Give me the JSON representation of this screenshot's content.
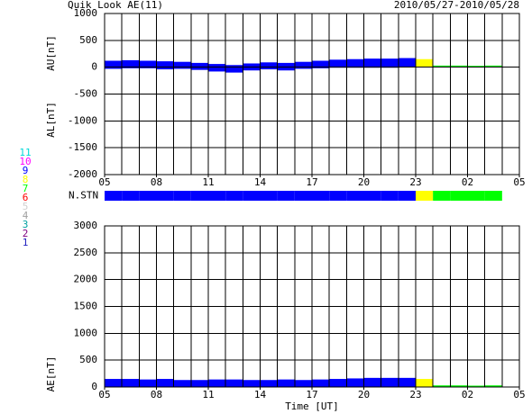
{
  "title": "Quik Look AE(11)",
  "date_range": "2010/05/27-2010/05/28",
  "station_legend": {
    "labels": [
      11,
      10,
      9,
      8,
      7,
      6,
      5,
      4,
      3,
      2,
      1
    ],
    "colors": [
      "#00d8d8",
      "#ff00ff",
      "#0000ff",
      "#ffff00",
      "#00ff00",
      "#ff0000",
      "#d0d0d0",
      "#a0a0a0",
      "#00a0a0",
      "#800080",
      "#2020c0"
    ]
  },
  "chart_data": [
    {
      "type": "range",
      "ylabels": [
        "AU[nT]",
        "AL[nT]"
      ],
      "x": [
        5,
        6,
        7,
        8,
        9,
        10,
        11,
        12,
        13,
        14,
        15,
        16,
        17,
        18,
        19,
        20,
        21,
        22,
        23,
        24,
        25,
        26,
        27
      ],
      "series": [
        {
          "values": [
            120,
            130,
            120,
            110,
            100,
            80,
            60,
            40,
            70,
            90,
            80,
            100,
            120,
            140,
            150,
            160,
            160,
            170,
            150,
            30,
            30,
            25,
            30
          ]
        },
        {
          "values": [
            -30,
            -20,
            -20,
            -40,
            -30,
            -50,
            -80,
            -100,
            -60,
            -40,
            -60,
            -30,
            -20,
            -10,
            -10,
            -10,
            -10,
            0,
            0,
            0,
            0,
            0,
            0
          ]
        }
      ],
      "xlim": [
        5,
        29
      ],
      "xticks": [
        {
          "value": 5,
          "label": "05"
        },
        {
          "value": 8,
          "label": "08"
        },
        11,
        14,
        17,
        20,
        23,
        {
          "value": 26,
          "label": "02"
        },
        {
          "value": 29,
          "label": "05"
        }
      ],
      "ylim": [
        -2000,
        1000
      ],
      "yticks": [
        -2000,
        -1500,
        -1000,
        -500,
        0,
        500,
        1000
      ],
      "grid": true
    },
    {
      "type": "strip",
      "label": "N.STN",
      "x": [
        5,
        6,
        7,
        8,
        9,
        10,
        11,
        12,
        13,
        14,
        15,
        16,
        17,
        18,
        19,
        20,
        21,
        22,
        23,
        24,
        25,
        26,
        27
      ],
      "values": [
        9,
        9,
        9,
        9,
        9,
        9,
        9,
        9,
        9,
        9,
        9,
        9,
        9,
        9,
        9,
        9,
        9,
        9,
        8,
        7,
        7,
        7,
        7
      ],
      "xlim": [
        5,
        29
      ]
    },
    {
      "type": "bar",
      "ylabel": "AE[nT]",
      "xlabel": "Time [UT]",
      "x": [
        5,
        6,
        7,
        8,
        9,
        10,
        11,
        12,
        13,
        14,
        15,
        16,
        17,
        18,
        19,
        20,
        21,
        22,
        23,
        24,
        25,
        26,
        27
      ],
      "values": [
        150,
        150,
        140,
        150,
        130,
        130,
        140,
        140,
        130,
        130,
        140,
        130,
        140,
        150,
        160,
        170,
        170,
        170,
        150,
        30,
        30,
        25,
        30
      ],
      "xlim": [
        5,
        29
      ],
      "xticks": [
        {
          "value": 5,
          "label": "05"
        },
        {
          "value": 8,
          "label": "08"
        },
        11,
        14,
        17,
        20,
        23,
        {
          "value": 26,
          "label": "02"
        },
        {
          "value": 29,
          "label": "05"
        }
      ],
      "ylim": [
        0,
        3000
      ],
      "yticks": [
        0,
        500,
        1000,
        1500,
        2000,
        2500,
        3000
      ],
      "grid": true
    }
  ]
}
